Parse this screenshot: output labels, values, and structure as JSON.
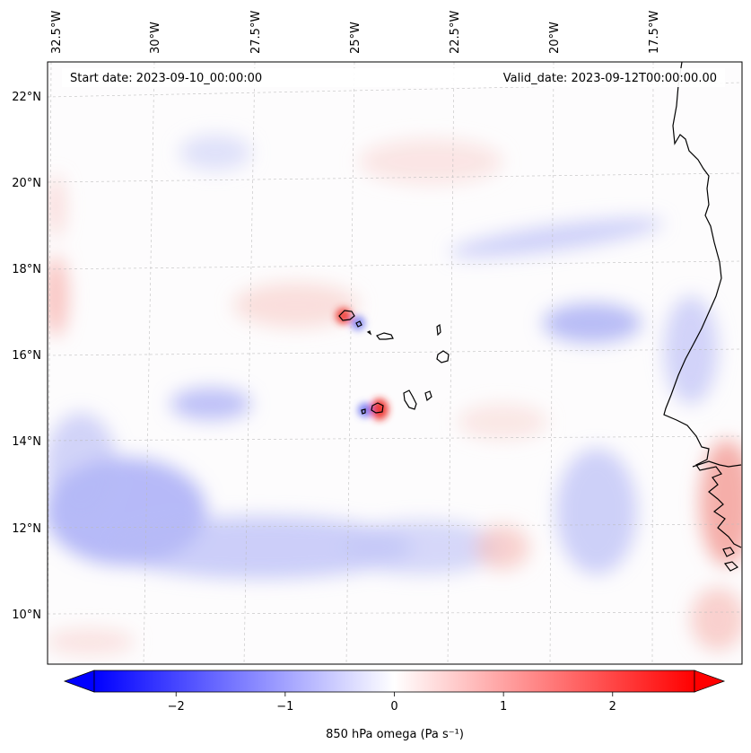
{
  "map": {
    "start_label": "Start date: 2023-09-10_00:00:00",
    "valid_label": "Valid_date: 2023-09-12T00:00:00.00",
    "lon_labels": [
      "32.5°W",
      "30°W",
      "27.5°W",
      "25°W",
      "22.5°W",
      "20°W",
      "17.5°W"
    ],
    "lat_labels": [
      "22°N",
      "20°N",
      "18°N",
      "16°N",
      "14°N",
      "12°N",
      "10°N"
    ],
    "gridlines": true,
    "coastline_color": "#000000"
  },
  "colorbar": {
    "label": "850 hPa omega (Pa s⁻¹)",
    "ticks": [
      "−2",
      "−1",
      "0",
      "1",
      "2"
    ],
    "tick_values": [
      -2,
      -1,
      0,
      1,
      2
    ],
    "range": [
      -2.75,
      2.75
    ],
    "extend": "both",
    "colormap": "bwr",
    "colors": {
      "low": "#0000ff",
      "mid": "#ffffff",
      "high": "#ff0000"
    }
  },
  "chart_data": {
    "type": "heatmap",
    "variable": "850 hPa omega",
    "units": "Pa s⁻¹",
    "lon_ticks": [
      -32.5,
      -30,
      -27.5,
      -25,
      -22.5,
      -20,
      -17.5
    ],
    "lat_ticks": [
      22,
      20,
      18,
      16,
      14,
      12,
      10
    ],
    "value_range": [
      -2.75,
      2.75
    ],
    "features": [
      {
        "region": "positive dipole W of Santo Antão",
        "lon": -25.3,
        "lat": 17.0,
        "value": 1.3
      },
      {
        "region": "negative dipole E of Santo Antão",
        "lon": -24.8,
        "lat": 16.9,
        "value": -0.8
      },
      {
        "region": "positive dipole at Fogo",
        "lon": -24.4,
        "lat": 14.9,
        "value": 1.5
      },
      {
        "region": "negative dipole W of Fogo",
        "lon": -24.8,
        "lat": 14.7,
        "value": -0.8
      },
      {
        "region": "broad negative band",
        "lon": -30.0,
        "lat": 12.0,
        "value": -0.7
      },
      {
        "region": "negative streak off Mauritania",
        "lon": -20.0,
        "lat": 17.0,
        "value": -0.6
      },
      {
        "region": "positive near Senegal coast",
        "lon": -16.5,
        "lat": 12.5,
        "value": 0.8
      },
      {
        "region": "positive at western edge",
        "lon": -32.8,
        "lat": 17.5,
        "value": 0.6
      }
    ]
  }
}
